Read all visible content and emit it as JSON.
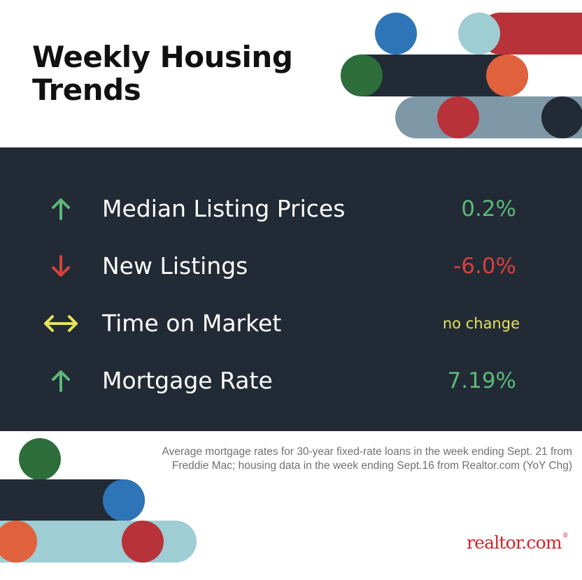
{
  "title": {
    "line1": "Weekly Housing",
    "line2": "Trends"
  },
  "colors": {
    "panel": "#222b35",
    "up": "#5cb97a",
    "down": "#d8403e",
    "no_change": "#e7e35c",
    "blue": "#2e75b7",
    "light_blue": "#9ecdd3",
    "red": "#b8323a",
    "green": "#2d6e3b",
    "orange": "#e0623c",
    "slate": "#7e98a8",
    "brand": "#d2232a"
  },
  "metrics": [
    {
      "direction": "up-arrow-icon",
      "label": "Median Listing Prices",
      "value": "0.2%"
    },
    {
      "direction": "down-arrow-icon",
      "label": "New Listings",
      "value": "-6.0%"
    },
    {
      "direction": "left-right-arrow-icon",
      "label": "Time on Market",
      "value": "no change"
    },
    {
      "direction": "up-arrow-icon",
      "label": "Mortgage Rate",
      "value": "7.19%"
    }
  ],
  "source": {
    "line1": "Average mortgage rates for 30-year fixed-rate loans in the week ending Sept. 21 from",
    "line2": "Freddie Mac; housing data in the week ending Sept.16 from Realtor.com (YoY Chg)"
  },
  "logo": {
    "word": "realtor.com",
    "mark": "®"
  }
}
